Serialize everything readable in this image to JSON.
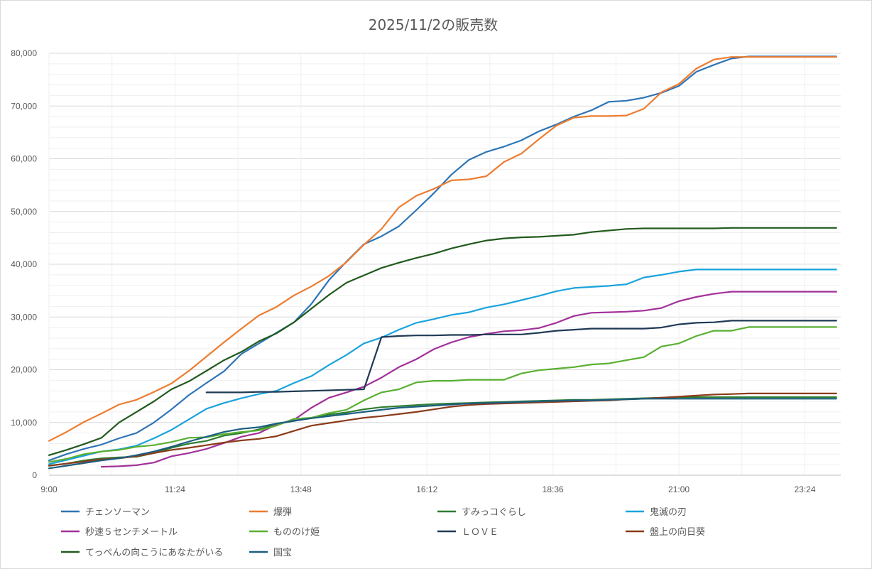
{
  "chart_data": {
    "type": "line",
    "title": "2025/11/2の販売数",
    "xlabel": "",
    "ylabel": "",
    "x_ticks": [
      "9:00",
      "11:24",
      "13:48",
      "16:12",
      "18:36",
      "21:00",
      "23:24"
    ],
    "x_range_minutes": [
      540,
      1445
    ],
    "y_ticks": [
      "0",
      "10,000",
      "20,000",
      "30,000",
      "40,000",
      "50,000",
      "60,000",
      "70,000",
      "80,000"
    ],
    "ylim": [
      0,
      80000
    ],
    "grid": true,
    "legend_position": "bottom",
    "sample_minutes": [
      540,
      560,
      580,
      600,
      620,
      640,
      660,
      680,
      700,
      720,
      740,
      760,
      780,
      800,
      820,
      840,
      860,
      880,
      900,
      920,
      940,
      960,
      980,
      1000,
      1020,
      1040,
      1060,
      1080,
      1100,
      1120,
      1140,
      1160,
      1180,
      1200,
      1220,
      1240,
      1260,
      1280,
      1300,
      1320,
      1340,
      1360,
      1380,
      1400,
      1420,
      1440
    ],
    "series": [
      {
        "name": "チェンソーマン",
        "color": "#2e75b6",
        "values": [
          2800,
          4000,
          5000,
          5800,
          7000,
          8000,
          10000,
          12500,
          15200,
          17500,
          19700,
          23000,
          25000,
          27000,
          29000,
          32500,
          37000,
          40500,
          43800,
          45300,
          47200,
          50300,
          53500,
          57000,
          59800,
          61300,
          62300,
          63500,
          65200,
          66500,
          68000,
          69200,
          70800,
          71000,
          71600,
          72500,
          73800,
          76500,
          77800,
          79000,
          79400,
          79400,
          79400,
          79400,
          79400,
          79400
        ]
      },
      {
        "name": "爆弾",
        "color": "#ed7d31",
        "values": [
          6500,
          8200,
          10100,
          11700,
          13400,
          14300,
          15800,
          17400,
          19800,
          22500,
          25200,
          27800,
          30300,
          31900,
          34100,
          35800,
          37800,
          40400,
          43700,
          46700,
          50800,
          53000,
          54300,
          55900,
          56100,
          56700,
          59400,
          61000,
          63700,
          66300,
          67800,
          68100,
          68100,
          68200,
          69500,
          72600,
          74200,
          77100,
          78800,
          79300,
          79300,
          79300,
          79300,
          79300,
          79300,
          79300
        ]
      },
      {
        "name": "すみっコぐらし",
        "color": "#2e7d32",
        "values": [
          1800,
          2200,
          2800,
          3200,
          3400,
          3500,
          4200,
          5200,
          6000,
          6500,
          7500,
          8000,
          8700,
          9700,
          10300,
          10900,
          11500,
          11900,
          12500,
          12900,
          13100,
          13300,
          13500,
          13600,
          13700,
          13800,
          13900,
          14000,
          14100,
          14200,
          14300,
          14300,
          14400,
          14500,
          14600,
          14700,
          14800,
          14800,
          14800,
          14800,
          14800,
          14800,
          14800,
          14800,
          14800,
          14800
        ]
      },
      {
        "name": "鬼滅の刃",
        "color": "#1aa3dc",
        "values": [
          2100,
          2900,
          3700,
          4500,
          4900,
          5600,
          7000,
          8600,
          10600,
          12600,
          13700,
          14600,
          15400,
          16000,
          17500,
          18800,
          20900,
          22800,
          25000,
          26100,
          27600,
          28900,
          29600,
          30400,
          30900,
          31800,
          32400,
          33200,
          34000,
          34900,
          35500,
          35700,
          35900,
          36200,
          37500,
          38000,
          38600,
          39000,
          39000,
          39000,
          39000,
          39000,
          39000,
          39000,
          39000,
          39000
        ]
      },
      {
        "name": "秒速５センチメートル",
        "color": "#a23199",
        "values": [
          null,
          null,
          null,
          1600,
          1700,
          1900,
          2400,
          3600,
          4200,
          5000,
          6100,
          7300,
          8000,
          9600,
          10500,
          12800,
          14700,
          15700,
          16800,
          18500,
          20500,
          22000,
          23900,
          25200,
          26200,
          26800,
          27300,
          27500,
          27900,
          28900,
          30200,
          30800,
          30900,
          31000,
          31200,
          31700,
          33000,
          33800,
          34400,
          34800,
          34800,
          34800,
          34800,
          34800,
          34800,
          34800
        ]
      },
      {
        "name": "もののけ姫",
        "color": "#59b032",
        "values": [
          2500,
          3100,
          4000,
          4500,
          4800,
          5400,
          5700,
          6300,
          7100,
          7200,
          7800,
          8200,
          8500,
          9400,
          10700,
          10900,
          11800,
          12400,
          14200,
          15700,
          16300,
          17600,
          17900,
          17900,
          18100,
          18100,
          18100,
          19300,
          19900,
          20200,
          20500,
          21000,
          21200,
          21800,
          22400,
          24400,
          25000,
          26400,
          27400,
          27400,
          28100,
          28100,
          28100,
          28100,
          28100,
          28100
        ]
      },
      {
        "name": "ＬＯＶＥ",
        "color": "#1f3a55",
        "values": [
          null,
          null,
          null,
          null,
          null,
          null,
          null,
          null,
          null,
          15700,
          15700,
          15700,
          15800,
          15800,
          15900,
          16000,
          16100,
          16200,
          16300,
          26200,
          26400,
          26500,
          26500,
          26600,
          26600,
          26700,
          26700,
          26700,
          27000,
          27400,
          27600,
          27800,
          27800,
          27800,
          27800,
          28000,
          28600,
          28900,
          29000,
          29300,
          29300,
          29300,
          29300,
          29300,
          29300,
          29300
        ]
      },
      {
        "name": "盤上の向日葵",
        "color": "#8b3a1a",
        "values": [
          1800,
          2200,
          2600,
          3000,
          3200,
          3600,
          4200,
          4800,
          5200,
          5700,
          6200,
          6600,
          6900,
          7400,
          8400,
          9400,
          9900,
          10400,
          10900,
          11200,
          11600,
          12000,
          12500,
          13000,
          13300,
          13500,
          13600,
          13700,
          13800,
          13900,
          14000,
          14100,
          14200,
          14400,
          14500,
          14700,
          14900,
          15100,
          15300,
          15400,
          15500,
          15500,
          15500,
          15500,
          15500,
          15500
        ]
      },
      {
        "name": "てっぺんの向こうにあなたがいる",
        "color": "#225a1e",
        "values": [
          3800,
          4800,
          5900,
          7100,
          10000,
          12000,
          14000,
          16300,
          17800,
          19800,
          21800,
          23400,
          25400,
          26900,
          29000,
          31600,
          34200,
          36500,
          37900,
          39300,
          40300,
          41200,
          42000,
          43000,
          43800,
          44500,
          44900,
          45100,
          45200,
          45400,
          45600,
          46100,
          46400,
          46700,
          46800,
          46800,
          46800,
          46800,
          46800,
          46900,
          46900,
          46900,
          46900,
          46900,
          46900,
          46900
        ]
      },
      {
        "name": "国宝",
        "color": "#1b5e80",
        "values": [
          1300,
          1800,
          2300,
          2800,
          3200,
          3800,
          4500,
          5400,
          6400,
          7300,
          8200,
          8800,
          9100,
          9800,
          10300,
          10800,
          11200,
          11600,
          12000,
          12400,
          12800,
          13000,
          13200,
          13400,
          13600,
          13700,
          13800,
          13900,
          14000,
          14100,
          14200,
          14200,
          14300,
          14400,
          14500,
          14500,
          14500,
          14500,
          14500,
          14500,
          14500,
          14500,
          14500,
          14500,
          14500,
          14500
        ]
      }
    ]
  }
}
